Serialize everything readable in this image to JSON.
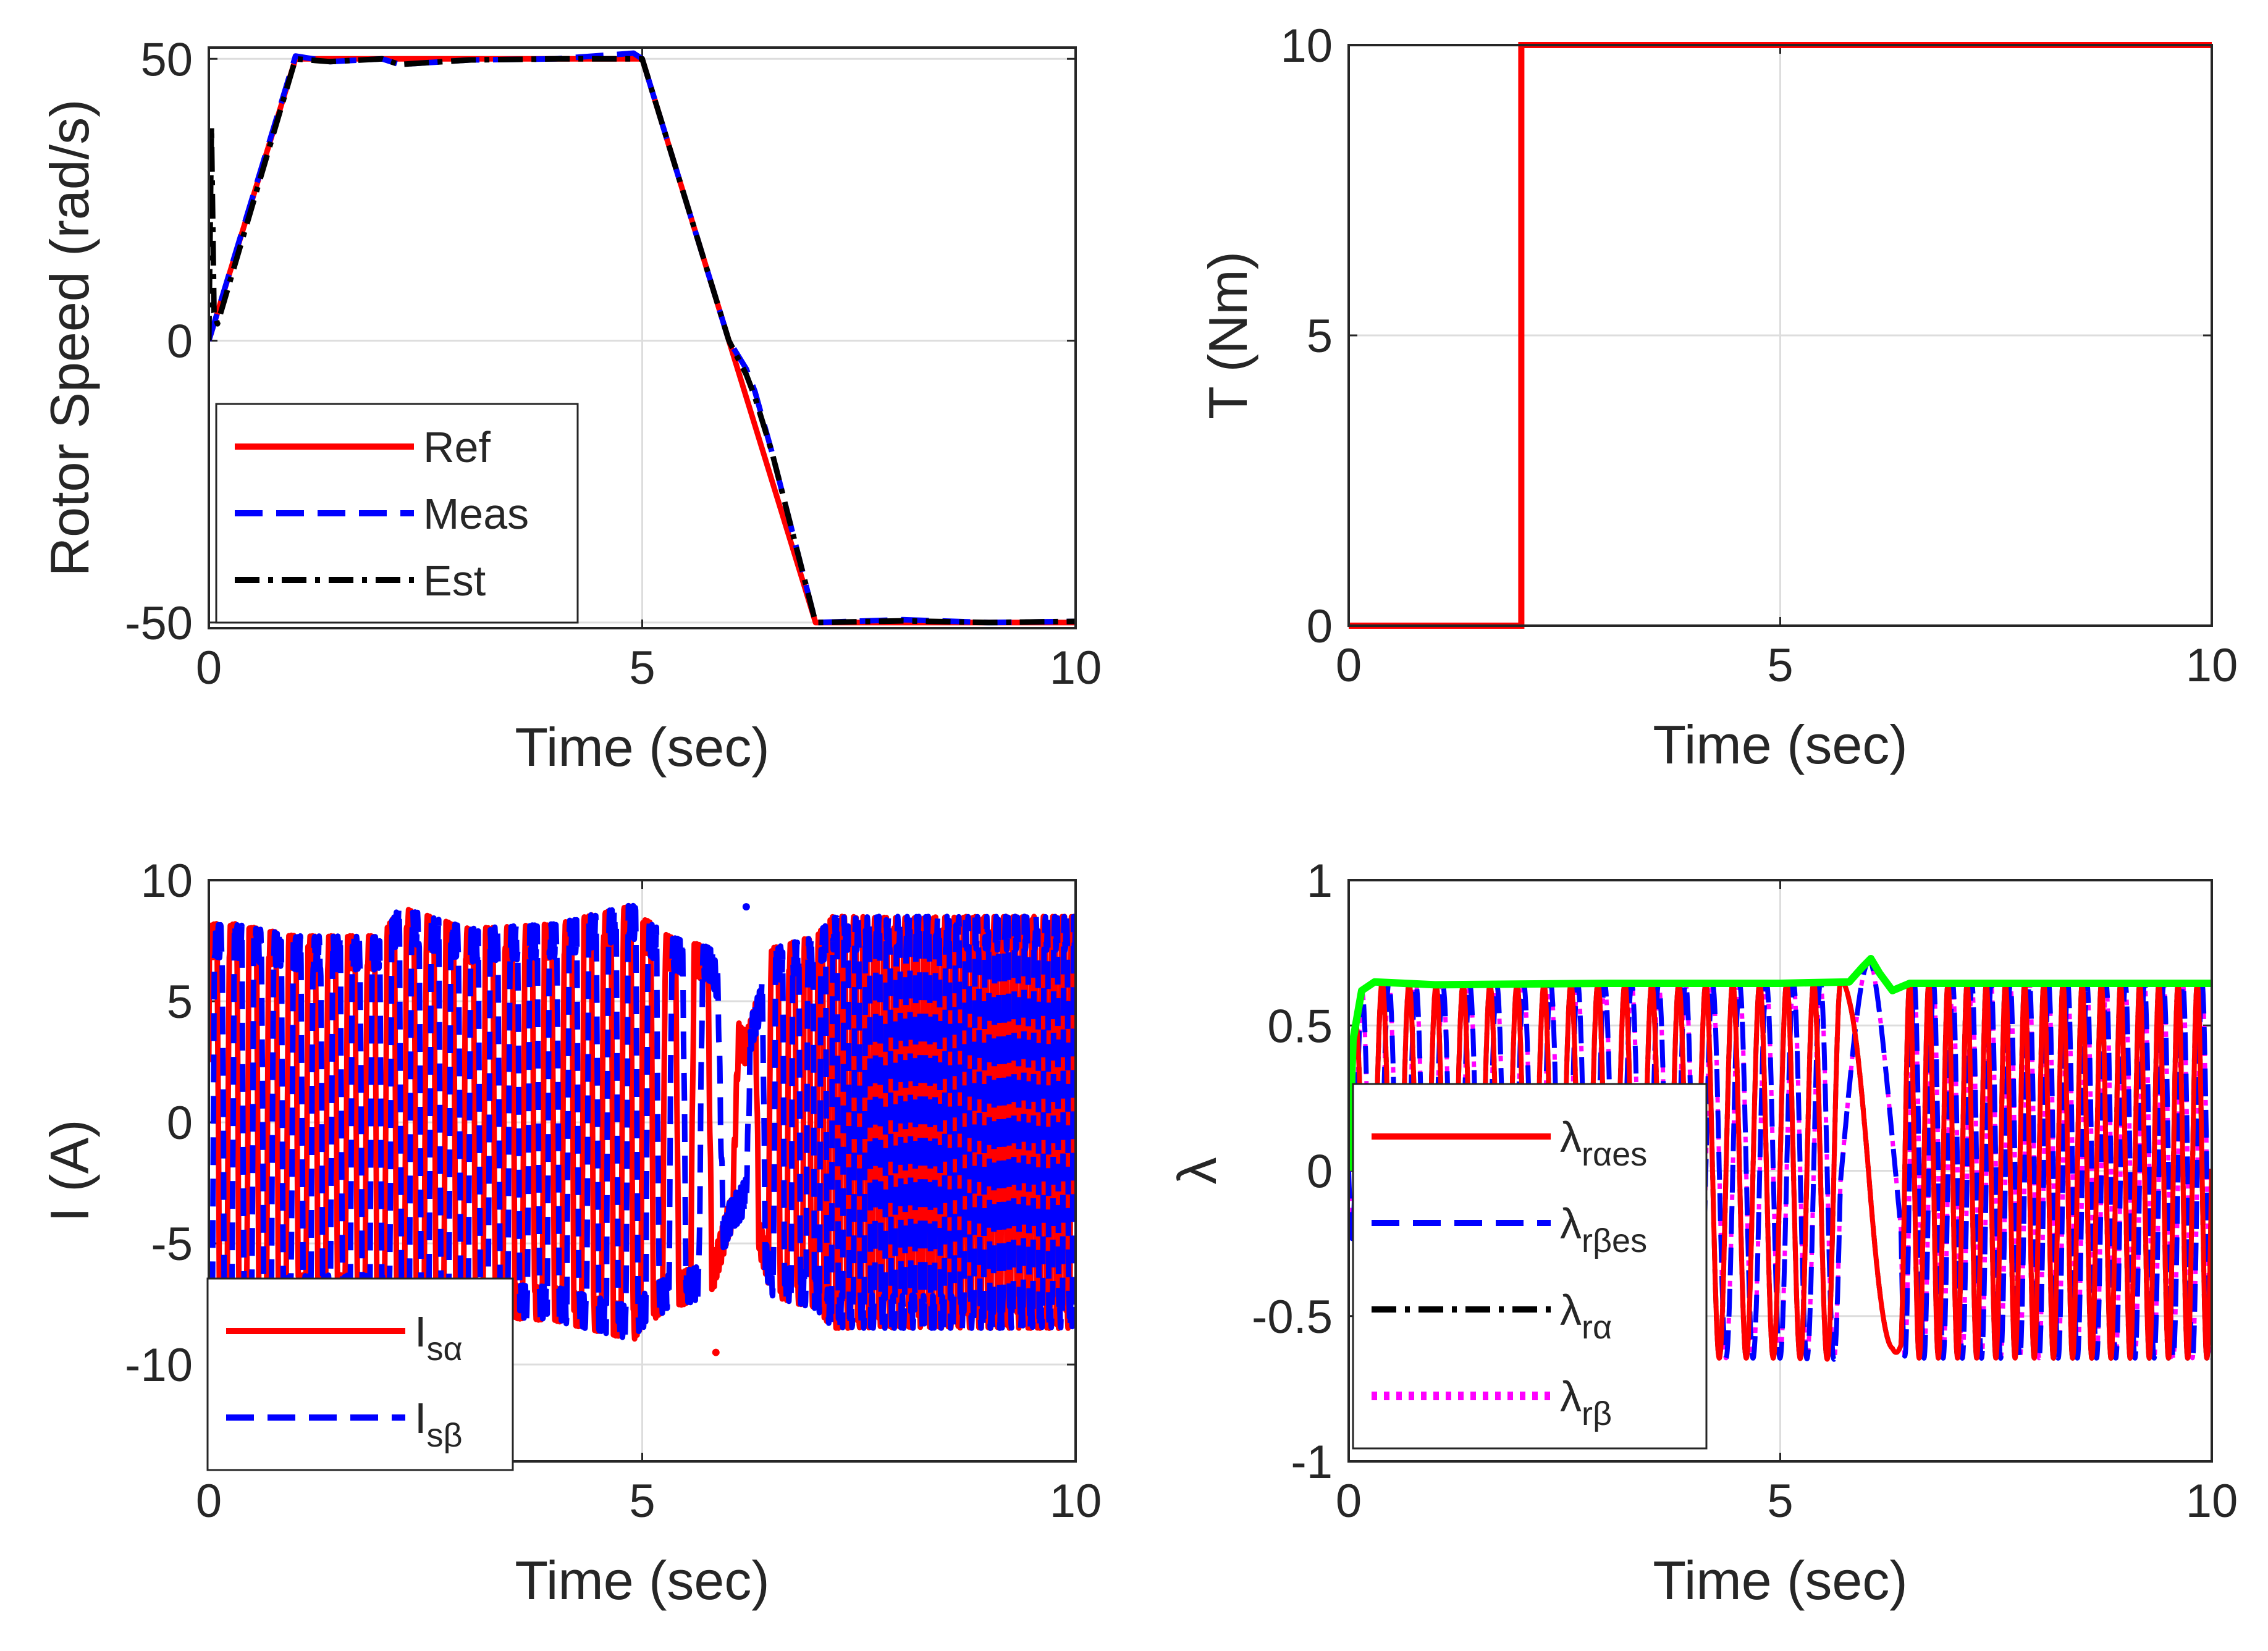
{
  "chart_data": [
    {
      "type": "line",
      "id": "speed",
      "xlabel": "Time (sec)",
      "ylabel": "Rotor Speed (rad/s)",
      "xlim": [
        0,
        10
      ],
      "ylim": [
        -51,
        52
      ],
      "xticks": [
        0,
        5,
        10
      ],
      "xtick_labels": [
        "0",
        "5",
        "10"
      ],
      "yticks": [
        -50,
        0,
        50
      ],
      "ytick_labels": [
        "-50",
        "0",
        "50"
      ],
      "grid": true,
      "legend_position": "bottom-left",
      "series": [
        {
          "name": "Ref",
          "color": "#ff0000",
          "style": "solid",
          "x": [
            0,
            1,
            5,
            7,
            10
          ],
          "y": [
            0,
            50,
            50,
            -50,
            -50
          ]
        },
        {
          "name": "Meas",
          "color": "#0000ff",
          "style": "dashed",
          "x": [
            0,
            0.02,
            1,
            1.4,
            2,
            2.2,
            3,
            4,
            4.9,
            5,
            6,
            6.2,
            6.3,
            6.5,
            7,
            8,
            9,
            10
          ],
          "y": [
            0,
            1,
            50.5,
            49.5,
            50,
            49,
            49.8,
            50,
            51,
            50,
            0,
            -5,
            -9,
            -20,
            -50,
            -49.5,
            -50,
            -49.8
          ]
        },
        {
          "name": "Est",
          "color": "#000000",
          "style": "dashdot",
          "x": [
            0,
            0.03,
            0.06,
            0.1,
            1,
            1.4,
            2,
            2.2,
            3,
            4,
            5,
            6,
            6.2,
            6.3,
            6.5,
            7,
            8,
            9,
            10
          ],
          "y": [
            0,
            38,
            5,
            3,
            50,
            49.5,
            50,
            49,
            49.8,
            50,
            50,
            0,
            -6,
            -10,
            -20,
            -50,
            -49.7,
            -50,
            -49.8
          ]
        }
      ]
    },
    {
      "type": "line",
      "id": "torque",
      "xlabel": "Time (sec)",
      "ylabel": "T (Nm)",
      "xlim": [
        0,
        10
      ],
      "ylim": [
        0,
        10
      ],
      "xticks": [
        0,
        5,
        10
      ],
      "xtick_labels": [
        "0",
        "5",
        "10"
      ],
      "yticks": [
        0,
        5,
        10
      ],
      "ytick_labels": [
        "0",
        "5",
        "10"
      ],
      "grid": true,
      "series": [
        {
          "name": "T",
          "color": "#ff0000",
          "style": "solid",
          "x": [
            0,
            2,
            2,
            10
          ],
          "y": [
            0,
            0,
            10,
            10
          ]
        }
      ]
    },
    {
      "type": "line",
      "id": "current",
      "xlabel": "Time (sec)",
      "ylabel": "I (A)",
      "xlim": [
        0,
        10
      ],
      "ylim": [
        -14,
        10
      ],
      "xticks": [
        0,
        5,
        10
      ],
      "xtick_labels": [
        "0",
        "5",
        "10"
      ],
      "yticks": [
        -10,
        -5,
        0,
        5,
        10
      ],
      "ytick_labels": [
        "-10",
        "-5",
        "0",
        "5",
        "10"
      ],
      "grid": true,
      "legend_position": "bottom-left",
      "envelope": {
        "t": [
          0,
          0.1,
          0.3,
          1,
          2,
          2.2,
          3,
          4,
          4.9,
          5,
          5.3,
          5.8,
          6.0,
          6.2,
          6.5,
          7,
          7.2,
          8,
          9,
          10
        ],
        "amp": [
          7.5,
          7.5,
          7.5,
          7,
          7,
          8.2,
          7.3,
          7.5,
          8.3,
          7.8,
          7,
          6.5,
          4,
          3,
          6.5,
          7,
          7.8,
          7.8,
          7.8,
          7.8
        ],
        "cycles_per_sec": [
          2,
          2,
          2,
          2,
          2,
          2,
          2,
          2,
          2,
          2,
          1.5,
          1,
          0.6,
          0.8,
          2,
          3,
          3.5,
          4,
          4,
          4
        ]
      },
      "series": [
        {
          "name": "I_sα",
          "label_main": "I",
          "label_sub": "sα",
          "color": "#ff0000",
          "style": "solid",
          "phase": 0
        },
        {
          "name": "I_sβ",
          "label_main": "I",
          "label_sub": "sβ",
          "color": "#0000ff",
          "style": "dashed",
          "phase": -90
        }
      ],
      "annotations": [
        {
          "x": 5.85,
          "y": -9.5
        },
        {
          "x": 6.2,
          "y": 8.9
        }
      ]
    },
    {
      "type": "line",
      "id": "flux",
      "xlabel": "Time (sec)",
      "ylabel": "λ",
      "xlim": [
        0,
        10
      ],
      "ylim": [
        -1,
        1
      ],
      "xticks": [
        0,
        5,
        10
      ],
      "xtick_labels": [
        "0",
        "5",
        "10"
      ],
      "yticks": [
        -1,
        -0.5,
        0,
        0.5,
        1
      ],
      "ytick_labels": [
        "-1",
        "-0.5",
        "0",
        "0.5",
        "1"
      ],
      "grid": true,
      "legend_position": "bottom-left",
      "magnitude": {
        "color": "#00ff00",
        "x": [
          0,
          0.05,
          0.15,
          0.3,
          1,
          3,
          5,
          5.8,
          5.95,
          6.05,
          6.15,
          6.3,
          6.5,
          10
        ],
        "y": [
          0,
          0.45,
          0.62,
          0.65,
          0.64,
          0.645,
          0.645,
          0.65,
          0.7,
          0.73,
          0.68,
          0.62,
          0.645,
          0.645
        ]
      },
      "series": [
        {
          "name": "λ_rαes",
          "label_main": "λ",
          "label_sub": "rαes",
          "color": "#ff0000",
          "style": "solid",
          "phase": 0
        },
        {
          "name": "λ_rβes",
          "label_main": "λ",
          "label_sub": "rβes",
          "color": "#0000ff",
          "style": "dashed",
          "phase": -90
        },
        {
          "name": "λ_rα",
          "label_main": "λ",
          "label_sub": "rα",
          "color": "#000000",
          "style": "dashdot",
          "phase": 0
        },
        {
          "name": "λ_rβ",
          "label_main": "λ",
          "label_sub": "rβ",
          "color": "#ff00ff",
          "style": "dotted",
          "phase": -90
        }
      ]
    }
  ]
}
